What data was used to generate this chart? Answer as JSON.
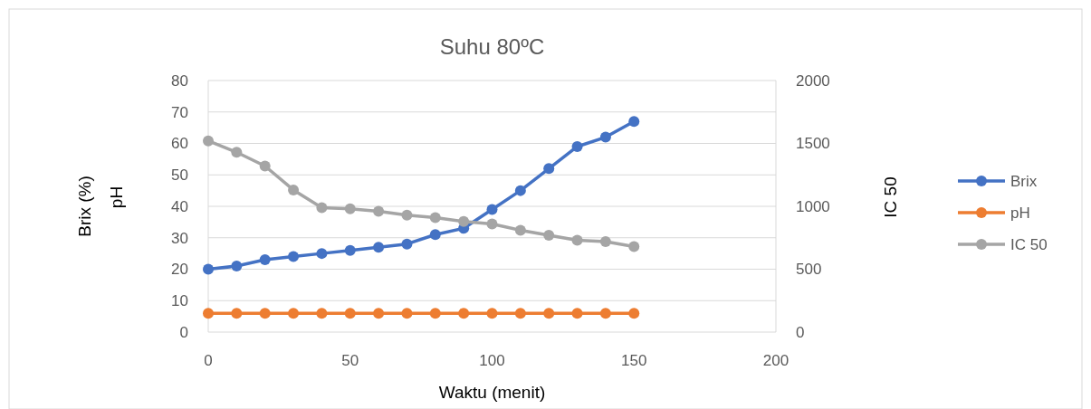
{
  "chart_data": {
    "type": "line",
    "title": "Suhu 80ºC",
    "xlabel": "Waktu (menit)",
    "ylabel": "Brix  (%)",
    "y2label": "IC 50",
    "annotations": [
      "pH"
    ],
    "x": [
      0,
      10,
      20,
      30,
      40,
      50,
      60,
      70,
      80,
      90,
      100,
      110,
      120,
      130,
      140,
      150
    ],
    "series": [
      {
        "name": "Brix",
        "color": "#4472c4",
        "values": [
          20,
          21,
          23,
          24,
          25,
          26,
          27,
          28,
          31,
          33,
          39,
          45,
          52,
          59,
          62,
          67
        ]
      },
      {
        "name": "pH",
        "color": "#ed7d31",
        "values": [
          6,
          6,
          6,
          6,
          6,
          6,
          6,
          6,
          6,
          6,
          6,
          6,
          6,
          6,
          6,
          6
        ]
      },
      {
        "name": "IC 50",
        "color": "#a5a5a5",
        "axis": "y2",
        "values": [
          1520,
          1430,
          1320,
          1130,
          990,
          980,
          960,
          930,
          910,
          880,
          860,
          810,
          770,
          730,
          720,
          680
        ]
      }
    ],
    "xlim": [
      0,
      200
    ],
    "xticks": [
      0,
      50,
      100,
      150,
      200
    ],
    "ylim": [
      0,
      80
    ],
    "yticks": [
      0,
      10,
      20,
      30,
      40,
      50,
      60,
      70,
      80
    ],
    "y2lim": [
      0,
      2000
    ],
    "y2ticks": [
      0,
      500,
      1000,
      1500,
      2000
    ],
    "grid": "y",
    "legend": "right",
    "marker": "circle",
    "line_style": "solid"
  }
}
